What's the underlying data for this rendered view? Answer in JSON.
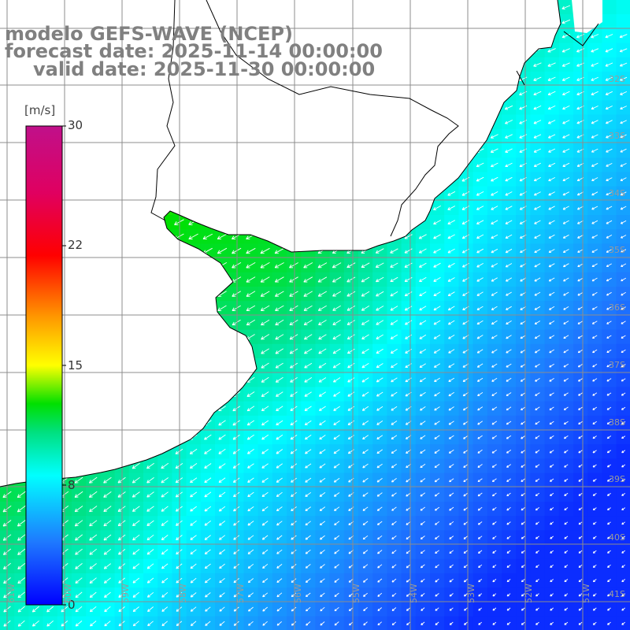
{
  "title": {
    "line1": "modelo GEFS-WAVE (NCEP)",
    "line2": "forecast date: 2025-11-14 00:00:00",
    "line3": "valid date: 2025-11-30 00:00:00"
  },
  "colorbar": {
    "unit": "[m/s]",
    "min": 0,
    "max": 30,
    "ticks": [
      "30",
      "22",
      "15",
      "8",
      "0"
    ]
  },
  "lat_labels": [
    "32S",
    "33S",
    "34S",
    "35S",
    "36S",
    "37S",
    "38S",
    "39S",
    "40S",
    "41S"
  ],
  "lon_labels": [
    "61W",
    "60W",
    "59W",
    "58W",
    "57W",
    "56W",
    "55W",
    "54W",
    "53W",
    "52W",
    "51W"
  ],
  "map": {
    "field": "wind speed",
    "colors": {
      "land": "#ffffff",
      "coast": "#000000",
      "grid": "#8c8c8c",
      "arrows": "#ffffff"
    }
  }
}
